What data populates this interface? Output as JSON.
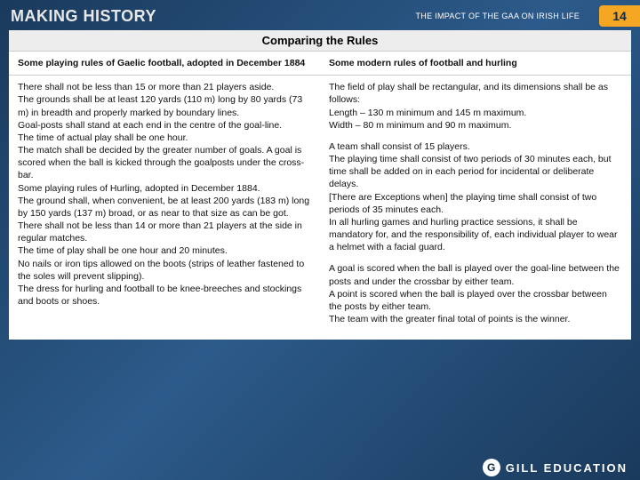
{
  "header": {
    "brand": "MAKING HISTORY",
    "impact": "THE IMPACT OF THE GAA ON IRISH LIFE",
    "page": "14"
  },
  "title": "Comparing the Rules",
  "columns": {
    "left_header": "Some playing rules of Gaelic football, adopted in December 1884",
    "right_header": "Some modern rules of football and hurling"
  },
  "left": {
    "p1": "There shall not be less than 15 or more than 21 players aside.\nThe grounds shall be at least 120 yards (110 m) long by 80 yards (73 m) in breadth and properly marked by boundary lines.\nGoal-posts shall stand at each end in the centre of the goal-line.\nThe time of actual play shall be one hour.\nThe match shall be decided by the greater number of goals. A goal is scored when the ball is kicked through the goalposts under the cross-bar.\nSome playing rules of Hurling, adopted in December 1884.\nThe ground shall, when convenient, be at least 200 yards (183 m) long by 150 yards (137 m) broad, or as near to that size as can be got.\nThere shall not be less than 14 or more than 21 players at the side in regular matches.\nThe time of play shall be one hour and 20 minutes.\nNo nails or iron tips allowed on the boots (strips of leather fastened to the soles will prevent slipping).\nThe dress for hurling and football to be knee-breeches and stockings and boots or shoes."
  },
  "right": {
    "p1": "The field of play shall be rectangular, and its dimensions shall be as follows:\nLength – 130 m minimum and 145 m maximum.\nWidth – 80 m minimum and 90 m maximum.",
    "p2": "A team shall consist of 15 players.\nThe playing time shall consist of two periods of 30 minutes each, but time shall be added on in each period for incidental or deliberate delays.\n[There are Exceptions when] the playing time shall consist of two periods of 35 minutes each.\nIn all hurling games and hurling practice sessions, it shall be mandatory for, and the responsibility of, each individual player to wear a helmet with a facial guard.",
    "p3": "A goal is scored when the ball is played over the goal-line between the posts and under the crossbar by either team.\nA point is scored when the ball is played over the crossbar between the posts by either team.\nThe team with the greater final total of points is the winner."
  },
  "footer": {
    "g": "G",
    "brand": "GILL EDUCATION"
  }
}
